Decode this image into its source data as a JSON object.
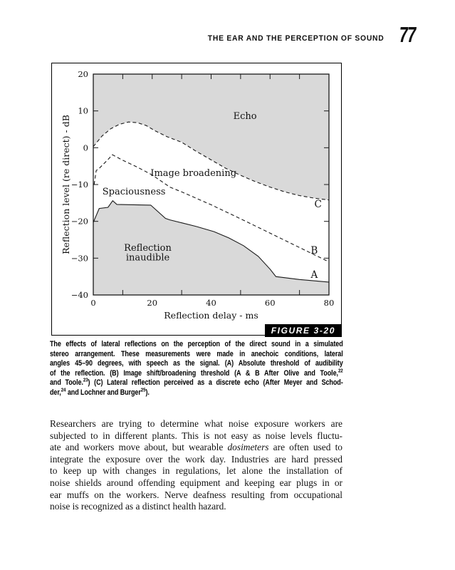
{
  "page": {
    "header": {
      "title": "THE EAR AND THE PERCEPTION OF SOUND",
      "page_number": "77"
    },
    "figure": {
      "label": "FIGURE 3-20",
      "caption_lines": [
        [
          {
            "t": "The effects of lateral reflections on the perception of the direct sound in a simulated"
          }
        ],
        [
          {
            "t": "stereo arrangement. These measurements were made in anechoic conditions, lateral"
          }
        ],
        [
          {
            "t": "angles 45–90 degrees, with speech as the signal. (A) Absolute threshold of audibility"
          }
        ],
        [
          {
            "t": "of the reflection. (B) Image shift/broadening threshold (A & B After Olive and Toole,"
          },
          {
            "t": "22",
            "sup": true
          }
        ],
        [
          {
            "t": "and Toole."
          },
          {
            "t": "23",
            "sup": true
          },
          {
            "t": ") (C) Lateral reflection perceived as a discrete echo (After Meyer and Schod-"
          }
        ],
        [
          {
            "t": "der,"
          },
          {
            "t": "24",
            "sup": true
          },
          {
            "t": " and Lochner and Burger"
          },
          {
            "t": "25",
            "sup": true
          },
          {
            "t": ")."
          }
        ]
      ]
    },
    "body": {
      "lines": [
        [
          {
            "t": "Researchers are trying to determine what noise exposure workers are"
          }
        ],
        [
          {
            "t": "subjected to in different plants. This is not easy as noise levels fluctu-"
          }
        ],
        [
          {
            "t": "ate and workers move about, but wearable "
          },
          {
            "t": "dosimeters",
            "i": true
          },
          {
            "t": " are often used to"
          }
        ],
        [
          {
            "t": "integrate the exposure over the work day. Industries are hard pressed"
          }
        ],
        [
          {
            "t": "to keep up with changes in regulations, let alone the installation of"
          }
        ],
        [
          {
            "t": "noise shields around offending equipment and keeping ear plugs in or"
          }
        ],
        [
          {
            "t": "ear muffs on the workers. Nerve deafness resulting from occupational"
          }
        ],
        [
          {
            "t": "noise is recognized as a distinct health hazard."
          }
        ]
      ]
    }
  },
  "chart_data": {
    "type": "area",
    "title": "",
    "xlabel": "Reflection delay - ms",
    "ylabel": "Reflection level (re direct) - dB",
    "xlim": [
      0,
      80
    ],
    "ylim": [
      -40,
      20
    ],
    "grid": false,
    "region_fill": "#d9d9d9",
    "line_color": "#1a1a1a",
    "x_major_ticks": [
      {
        "v": 0,
        "label": "0"
      },
      {
        "v": 20,
        "label": "20"
      },
      {
        "v": 40,
        "label": "40"
      },
      {
        "v": 60,
        "label": "60"
      },
      {
        "v": 80,
        "label": "80"
      }
    ],
    "x_bottom_minor_ticks": [
      10,
      30,
      50,
      70
    ],
    "x_top_ticks": [
      10,
      20,
      30,
      40,
      50,
      60,
      70
    ],
    "y_ticks": [
      {
        "v": 20,
        "label": "20"
      },
      {
        "v": 10,
        "label": "10"
      },
      {
        "v": 0,
        "label": "0"
      },
      {
        "v": -10,
        "label": "−10"
      },
      {
        "v": -20,
        "label": "−20"
      },
      {
        "v": -30,
        "label": "−30"
      },
      {
        "v": -40,
        "label": "−40"
      }
    ],
    "series": [
      {
        "name": "A",
        "meaning": "Absolute threshold of audibility of the reflection",
        "style": "solid",
        "points": [
          [
            0,
            -20.3
          ],
          [
            2,
            -16.5
          ],
          [
            5,
            -16.2
          ],
          [
            6.6,
            -14.4
          ],
          [
            8,
            -15.4
          ],
          [
            19.5,
            -15.6
          ],
          [
            24.5,
            -19.2
          ],
          [
            26,
            -19.6
          ],
          [
            30,
            -20.4
          ],
          [
            35,
            -21.4
          ],
          [
            41,
            -22.8
          ],
          [
            46,
            -24.5
          ],
          [
            51,
            -26.6
          ],
          [
            56,
            -29.5
          ],
          [
            60,
            -33
          ],
          [
            62,
            -35
          ],
          [
            70,
            -35.8
          ],
          [
            80,
            -36.5
          ]
        ]
      },
      {
        "name": "B",
        "meaning": "Image shift/broadening threshold",
        "style": "dashed",
        "points": [
          [
            0.3,
            -10
          ],
          [
            1,
            -6.2
          ],
          [
            2,
            -5.6
          ],
          [
            3.5,
            -4.4
          ],
          [
            5,
            -3.2
          ],
          [
            6.5,
            -1.9
          ],
          [
            10,
            -3.4
          ],
          [
            15,
            -5.3
          ],
          [
            20,
            -7.4
          ],
          [
            26,
            -10.7
          ],
          [
            30,
            -12
          ],
          [
            40,
            -15.5
          ],
          [
            50,
            -19.3
          ],
          [
            60,
            -23.2
          ],
          [
            70,
            -27.1
          ],
          [
            80,
            -31
          ]
        ]
      },
      {
        "name": "C",
        "meaning": "Lateral reflection perceived as a discrete echo",
        "style": "dashed",
        "points": [
          [
            0,
            0.3
          ],
          [
            3,
            3.2
          ],
          [
            6,
            5.2
          ],
          [
            9,
            6.4
          ],
          [
            12,
            7
          ],
          [
            15,
            6.8
          ],
          [
            18,
            6
          ],
          [
            21,
            4.6
          ],
          [
            25,
            3
          ],
          [
            30,
            1.5
          ],
          [
            35,
            -1
          ],
          [
            40,
            -3.3
          ],
          [
            45,
            -5.6
          ],
          [
            50,
            -7.5
          ],
          [
            55,
            -9.2
          ],
          [
            60,
            -10.7
          ],
          [
            65,
            -12
          ],
          [
            70,
            -13
          ],
          [
            75,
            -13.7
          ],
          [
            80,
            -14.2
          ]
        ]
      }
    ],
    "regions": [
      {
        "name": "echo-region",
        "bounded_by": "C",
        "side": "above"
      },
      {
        "name": "reflection-inaudible-region",
        "bounded_by": "A",
        "side": "below"
      }
    ],
    "annotations": [
      {
        "text": "Echo",
        "x": 51.5,
        "y": 8.6,
        "size": 13
      },
      {
        "text": "Image broadening",
        "x": 34,
        "y": -6.9,
        "size": 13
      },
      {
        "text": "Spaciousness",
        "x": 13.8,
        "y": -11.9,
        "size": 13
      },
      {
        "text": "Reflection",
        "x": 18.5,
        "y": -27.2,
        "size": 13
      },
      {
        "text": "inaudible",
        "x": 18.5,
        "y": -29.8,
        "size": 13
      },
      {
        "text": "C",
        "x": 76.3,
        "y": -15.4,
        "size": 13.5
      },
      {
        "text": "B",
        "x": 75,
        "y": -28,
        "size": 13.5
      },
      {
        "text": "A",
        "x": 75,
        "y": -34.6,
        "size": 13.5
      }
    ]
  }
}
